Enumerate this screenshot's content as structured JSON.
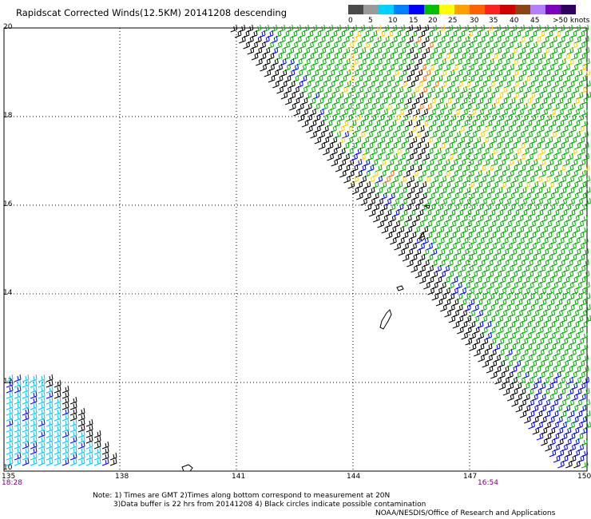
{
  "title": "Rapidscat Corrected Winds(12.5KM) 20141208 descending",
  "colorbar": {
    "ticks": [
      "0",
      "5",
      "10",
      "15",
      "20",
      "25",
      "30",
      "35",
      "40",
      "45",
      ">50 knots"
    ],
    "colors": [
      "#4a4a4a",
      "#9a9a9a",
      "#00d0ff",
      "#0080ff",
      "#0000ff",
      "#00c000",
      "#ffff00",
      "#ffa000",
      "#ff6000",
      "#ff2020",
      "#d00000",
      "#8b4513",
      "#b080ff",
      "#8000c0",
      "#300060"
    ]
  },
  "axes": {
    "lat_labels": [
      "20",
      "18",
      "16",
      "14",
      "12",
      "10"
    ],
    "lon_labels": [
      "135",
      "138",
      "141",
      "144",
      "147",
      "150"
    ],
    "lon_range": [
      135,
      150
    ],
    "lat_range": [
      10,
      20
    ]
  },
  "times": {
    "left": "18:28",
    "right": "16:54"
  },
  "notes": [
    "Note: 1) Times are GMT 2)Times along bottom correspond to measurement at 20N",
    "3)Data buffer is 22 hrs from 20141208 4) Black circles indicate possible contamination",
    "NOAA/NESDIS/Office of Research and Applications"
  ],
  "wind_colors": {
    "calm": "#000000",
    "light": "#0000ff",
    "moderate": "#00b000",
    "fresh": "#ffd000",
    "strong": "#ff7000",
    "low_cyan": "#00c8ff"
  }
}
